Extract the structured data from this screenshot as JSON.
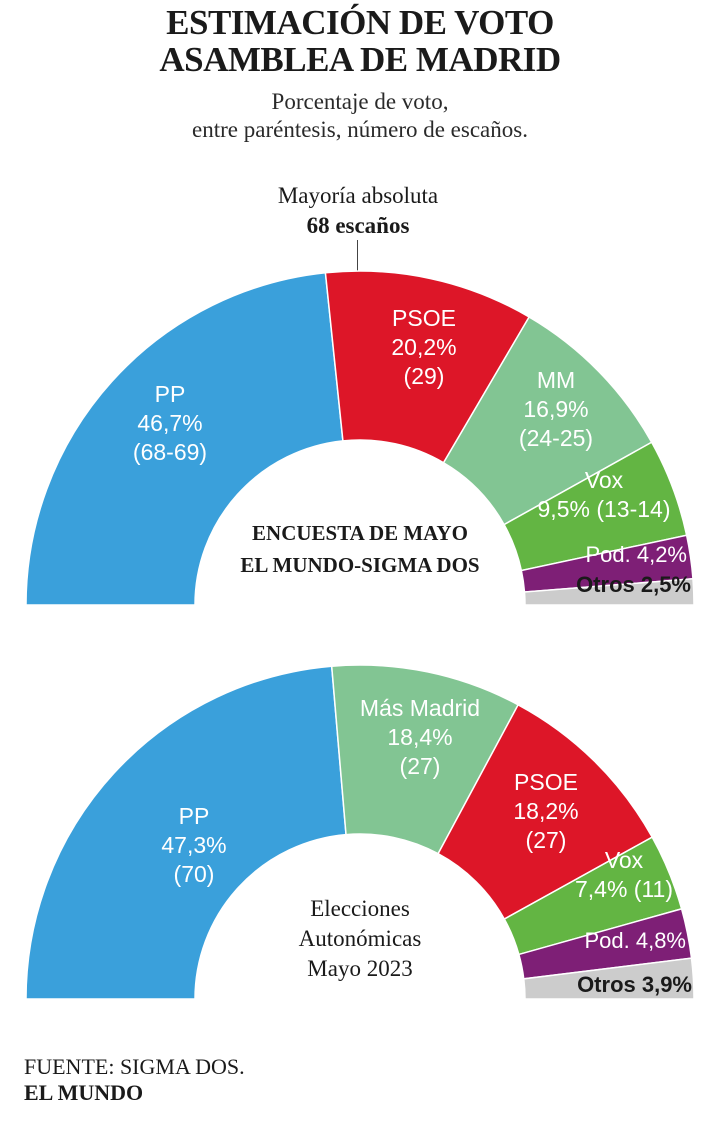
{
  "header": {
    "title_line1": "ESTIMACIÓN DE VOTO",
    "title_line2": "ASAMBLEA DE MADRID",
    "subtitle_line1": "Porcentaje de voto,",
    "subtitle_line2": "entre paréntesis, número de escaños."
  },
  "majority": {
    "line1": "Mayoría absoluta",
    "line2": "68 escaños"
  },
  "chart_data": [
    {
      "type": "pie",
      "variant": "half-donut",
      "center_label": [
        "ENCUESTA DE MAYO",
        "EL MUNDO-SIGMA DOS"
      ],
      "slices": [
        {
          "label": [
            "PP",
            "46,7%",
            "(68-69)"
          ],
          "value": 46.7,
          "color": "#3aa0db",
          "text_color": "#ffffff"
        },
        {
          "label": [
            "PSOE",
            "20,2%",
            "(29)"
          ],
          "value": 20.2,
          "color": "#dd1628",
          "text_color": "#ffffff"
        },
        {
          "label": [
            "MM",
            "16,9%",
            "(24-25)"
          ],
          "value": 16.9,
          "color": "#82c593",
          "text_color": "#ffffff"
        },
        {
          "label": [
            "Vox",
            "9,5% (13-14)"
          ],
          "value": 9.5,
          "color": "#63b543",
          "text_color": "#ffffff"
        },
        {
          "label": [
            "Pod. 4,2%"
          ],
          "value": 4.2,
          "color": "#7e1f76",
          "text_color": "#ffffff"
        },
        {
          "label": [
            "Otros 2,5%"
          ],
          "value": 2.5,
          "color": "#cccccc",
          "text_color": "#1a1a1a"
        }
      ]
    },
    {
      "type": "pie",
      "variant": "half-donut",
      "center_label": [
        "Elecciones",
        "Autonómicas",
        "Mayo 2023"
      ],
      "slices": [
        {
          "label": [
            "PP",
            "47,3%",
            "(70)"
          ],
          "value": 47.3,
          "color": "#3aa0db",
          "text_color": "#ffffff"
        },
        {
          "label": [
            "Más Madrid",
            "18,4%",
            "(27)"
          ],
          "value": 18.4,
          "color": "#82c593",
          "text_color": "#ffffff"
        },
        {
          "label": [
            "PSOE",
            "18,2%",
            "(27)"
          ],
          "value": 18.2,
          "color": "#dd1628",
          "text_color": "#ffffff"
        },
        {
          "label": [
            "Vox",
            "7,4% (11)"
          ],
          "value": 7.4,
          "color": "#63b543",
          "text_color": "#ffffff"
        },
        {
          "label": [
            "Pod. 4,8%"
          ],
          "value": 4.8,
          "color": "#7e1f76",
          "text_color": "#ffffff"
        },
        {
          "label": [
            "Otros 3,9%"
          ],
          "value": 3.9,
          "color": "#cccccc",
          "text_color": "#1a1a1a"
        }
      ]
    }
  ],
  "footer": {
    "source": "FUENTE: SIGMA DOS.",
    "brand": "EL MUNDO"
  }
}
